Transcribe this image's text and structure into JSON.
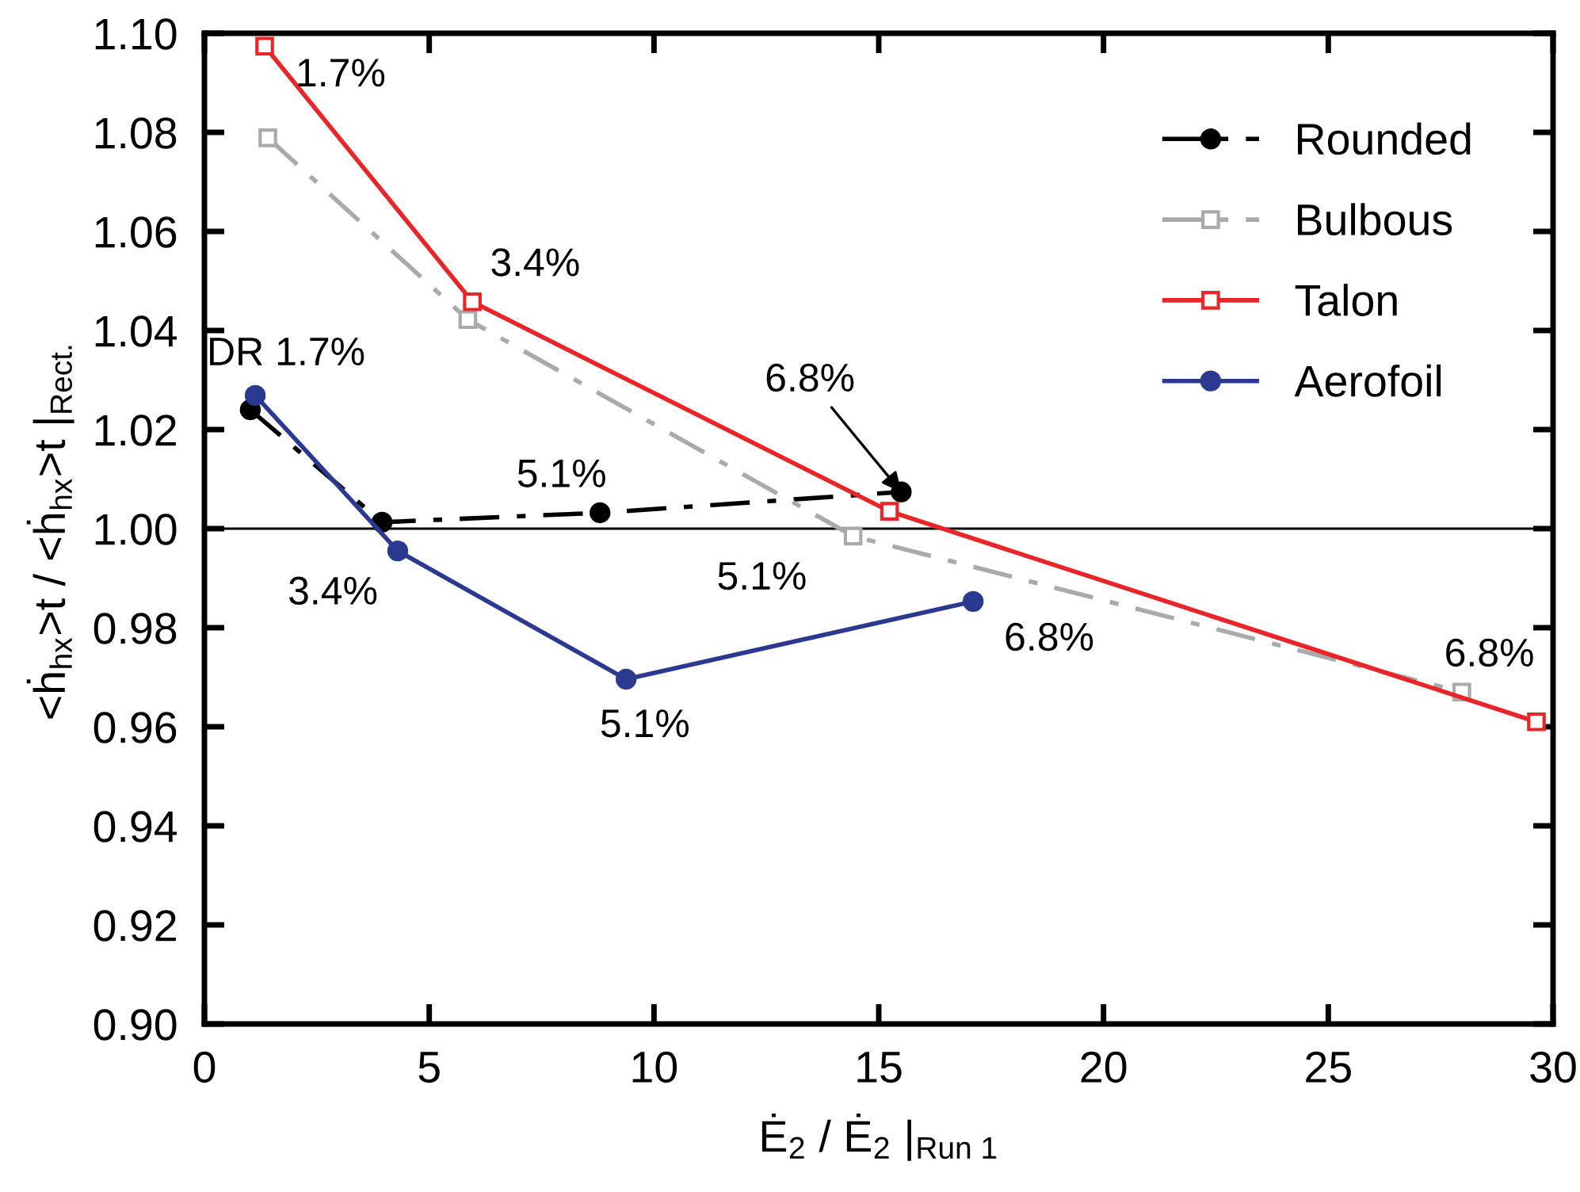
{
  "chart_data": {
    "type": "line",
    "xlabel": "Ė$_{2}$ / Ė$_{2}$ |$_{Run 1}$",
    "ylabel": "<ḣ$_{hx}$>t / <ḣ$_{hx}$>t |$_{Rect.}$",
    "xlim": [
      0,
      30
    ],
    "xticks": [
      0,
      5,
      10,
      15,
      20,
      25,
      30
    ],
    "ylim": [
      0.9,
      1.1
    ],
    "yticks": [
      {
        "value": 0.9,
        "label": "0.90"
      },
      {
        "value": 0.92,
        "label": "0.92"
      },
      {
        "value": 0.94,
        "label": "0.94"
      },
      {
        "value": 0.96,
        "label": "0.96"
      },
      {
        "value": 0.98,
        "label": "0.98"
      },
      {
        "value": 1.0,
        "label": "1.00"
      },
      {
        "value": 1.02,
        "label": "1.02"
      },
      {
        "value": 1.04,
        "label": "1.04"
      },
      {
        "value": 1.06,
        "label": "1.06"
      },
      {
        "value": 1.08,
        "label": "1.08"
      },
      {
        "value": 1.1,
        "label": "1.10"
      }
    ],
    "grid": false,
    "legend": "top right",
    "series": [
      {
        "name": "Rounded",
        "color": "#000000",
        "marker": "circle",
        "line_style": "dashdot",
        "x": [
          1.02,
          3.95,
          8.8,
          15.5
        ],
        "values": [
          1.024,
          1.0013,
          1.0032,
          1.0074
        ]
      },
      {
        "name": "Bulbous",
        "color": "#aaaaaa",
        "marker": "square",
        "line_style": "dashdot",
        "x": [
          1.41,
          5.86,
          14.43,
          27.97
        ],
        "values": [
          1.0789,
          1.0422,
          0.9985,
          0.967
        ]
      },
      {
        "name": "Talon",
        "color": "#e8262a",
        "marker": "square",
        "line_style": "solid",
        "x": [
          1.34,
          5.96,
          15.24,
          29.63
        ],
        "values": [
          1.0974,
          1.0458,
          1.0035,
          0.961
        ]
      },
      {
        "name": "Aerofoil",
        "color": "#2b3990",
        "marker": "circle",
        "line_style": "solid",
        "x": [
          1.13,
          4.3,
          9.38,
          17.1
        ],
        "values": [
          1.0269,
          0.9955,
          0.9696,
          0.9853
        ]
      }
    ],
    "ref_lines": [
      {
        "axis": "y",
        "value": 1.0,
        "color": "#000000"
      }
    ],
    "annotations": [
      {
        "text": "1.7%",
        "x": 1.34,
        "y": 1.0974
      },
      {
        "text": "3.4%",
        "x": 5.96,
        "y": 1.0458
      },
      {
        "text": "DR 1.7%",
        "x": 1.13,
        "y": 1.0269
      },
      {
        "text": "5.1%",
        "x": 8.8,
        "y": 1.0032
      },
      {
        "text": "6.8%",
        "x": 15.5,
        "y": 1.0074
      },
      {
        "text": "3.4%",
        "x": 4.3,
        "y": 0.9955
      },
      {
        "text": "5.1%",
        "x": 14.43,
        "y": 0.9985
      },
      {
        "text": "5.1%",
        "x": 9.38,
        "y": 0.9696
      },
      {
        "text": "6.8%",
        "x": 17.1,
        "y": 0.9853
      },
      {
        "text": "6.8%",
        "x": 27.97,
        "y": 0.967
      }
    ]
  }
}
